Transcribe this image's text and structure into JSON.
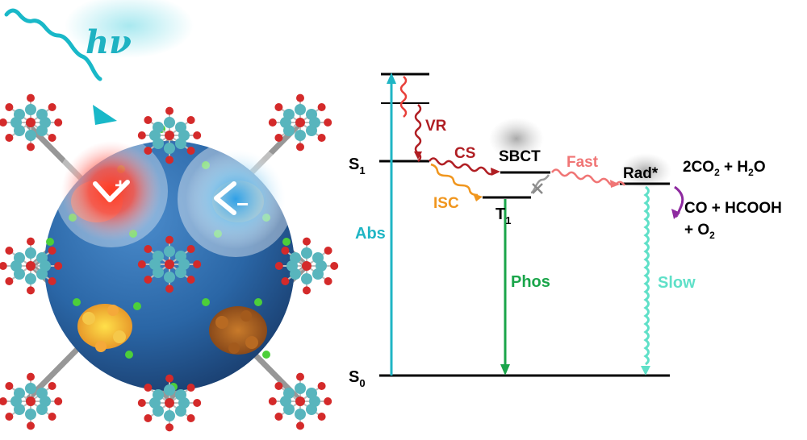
{
  "photon": {
    "label": "hν"
  },
  "mof": {
    "hole_mark": "+",
    "electron_mark": "−",
    "colors": {
      "sphere": "#2e6fae",
      "cation_glow": "#ff2a1a",
      "anion_glow": "#36a9e8",
      "node_metal": "#58b5bd",
      "node_oxygen": "#d42a2a",
      "linker_f": "#4ccf3a"
    }
  },
  "states": {
    "S1": {
      "main": "S",
      "sub": "1"
    },
    "S0": {
      "main": "S",
      "sub": "0"
    },
    "T1": {
      "main": "T",
      "sub": "1"
    },
    "SBCT": "SBCT",
    "Rad": "Rad*"
  },
  "processes": {
    "VR": "VR",
    "CS": "CS",
    "ISC": "ISC",
    "Fast": "Fast",
    "Abs": "Abs",
    "Phos": "Phos",
    "Slow": "Slow"
  },
  "products": {
    "line1": {
      "a": "2CO",
      "sub": "2",
      "b": " + H",
      "sub2": "2",
      "c": "O"
    },
    "line2": "CO + HCOOH",
    "line3": {
      "a": "+ O",
      "sub": "2"
    }
  },
  "colors": {
    "abs": "#1fb5c4",
    "vr": "#e8403a",
    "cs": "#b01e23",
    "isc": "#f0961e",
    "fast": "#f07575",
    "phos": "#1aa54a",
    "slow": "#5fe0c8",
    "curl": "#8e2aa0",
    "level": "#000000"
  }
}
